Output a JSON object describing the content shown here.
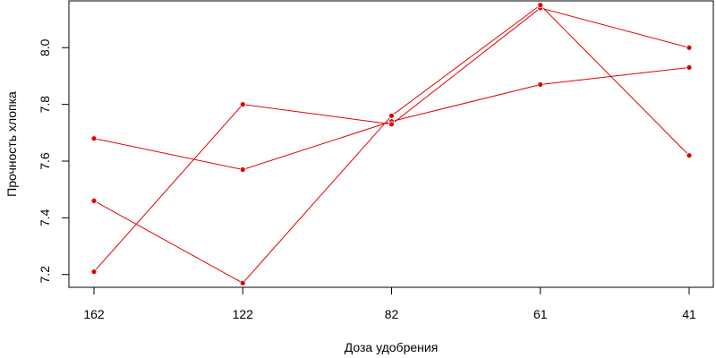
{
  "chart_data": {
    "type": "line",
    "title": "",
    "xlabel": "Доза удобрения",
    "ylabel": "Прочность хлопка",
    "categories": [
      "162",
      "122",
      "82",
      "61",
      "41"
    ],
    "ylim": [
      7.155,
      8.165
    ],
    "yticks": [
      7.2,
      7.4,
      7.6,
      7.8,
      8.0
    ],
    "ytick_labels": [
      "7.2",
      "7.4",
      "7.6",
      "7.8",
      "8.0"
    ],
    "grid": false,
    "series": [
      {
        "values": [
          7.68,
          7.57,
          7.74,
          7.87,
          7.93
        ]
      },
      {
        "values": [
          7.21,
          7.8,
          7.73,
          8.14,
          8.0
        ]
      },
      {
        "values": [
          7.46,
          7.17,
          7.76,
          8.15,
          7.62
        ]
      }
    ],
    "series_color": "#e00000"
  }
}
